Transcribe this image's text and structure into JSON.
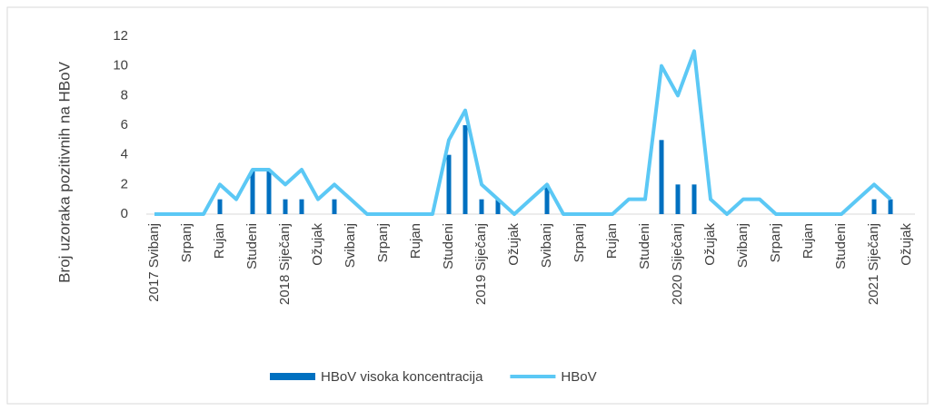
{
  "chart_data": {
    "type": "bar-line",
    "ylabel": "Broj uzoraka pozitivnih na HBoV",
    "categories": [
      "2017 Svibanj",
      null,
      "Srpanj",
      null,
      "Rujan",
      null,
      "Studeni",
      null,
      "2018 Siječanj",
      null,
      "Ožujak",
      null,
      "Svibanj",
      null,
      "Srpanj",
      null,
      "Rujan",
      null,
      "Studeni",
      null,
      "2019 Siječanj",
      null,
      "Ožujak",
      null,
      "Svibanj",
      null,
      "Srpanj",
      null,
      "Rujan",
      null,
      "Studeni",
      null,
      "2020 Siječanj",
      null,
      "Ožujak",
      null,
      "Svibanj",
      null,
      "Srpanj",
      null,
      "Rujan",
      null,
      "Studeni",
      null,
      "2021 Siječanj",
      null,
      "Ožujak"
    ],
    "series": [
      {
        "name": "HBoV visoka koncentracija",
        "type": "bar",
        "color": "#0070c0",
        "values": [
          0,
          0,
          0,
          0,
          1,
          0,
          3,
          3,
          1,
          1,
          0,
          1,
          0,
          0,
          0,
          0,
          0,
          0,
          4,
          6,
          1,
          1,
          0,
          0,
          2,
          0,
          0,
          0,
          0,
          0,
          0,
          5,
          2,
          2,
          0,
          0,
          0,
          0,
          0,
          0,
          0,
          0,
          0,
          0,
          1,
          1,
          null
        ]
      },
      {
        "name": "HBoV",
        "type": "line",
        "color": "#5bc8f5",
        "values": [
          0,
          0,
          0,
          0,
          2,
          1,
          3,
          3,
          2,
          3,
          1,
          2,
          1,
          0,
          0,
          0,
          0,
          0,
          5,
          7,
          2,
          1,
          0,
          1,
          2,
          0,
          0,
          0,
          0,
          1,
          1,
          10,
          8,
          11,
          1,
          0,
          1,
          1,
          0,
          0,
          0,
          0,
          0,
          1,
          2,
          1,
          null
        ]
      }
    ],
    "ylim": [
      0,
      12
    ],
    "yticks": [
      0,
      2,
      4,
      6,
      8,
      10,
      12
    ],
    "grid": false,
    "legend": "bottom"
  }
}
